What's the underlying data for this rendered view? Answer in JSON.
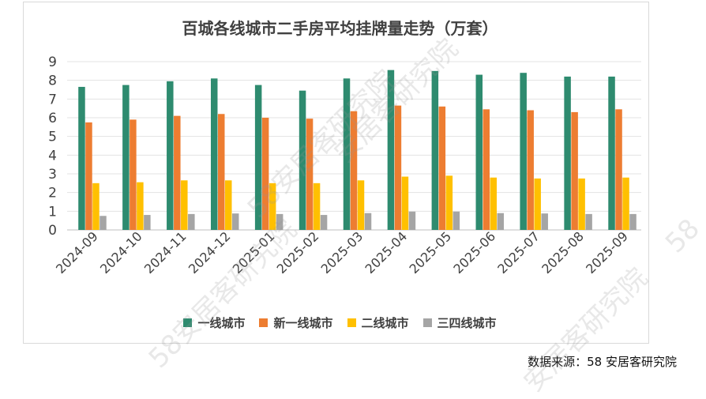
{
  "chart_data": {
    "type": "bar",
    "title": "百城各线城市二手房平均挂牌量走势（万套）",
    "categories": [
      "2024-09",
      "2024-10",
      "2024-11",
      "2024-12",
      "2025-01",
      "2025-02",
      "2025-03",
      "2025-04",
      "2025-05",
      "2025-06",
      "2025-07",
      "2025-08",
      "2025-09"
    ],
    "series": [
      {
        "name": "一线城市",
        "color": "#2e8b6f",
        "values": [
          7.65,
          7.75,
          7.95,
          8.1,
          7.75,
          7.45,
          8.1,
          8.55,
          8.5,
          8.3,
          8.4,
          8.2,
          8.2
        ]
      },
      {
        "name": "新一线城市",
        "color": "#ed7d31",
        "values": [
          5.75,
          5.9,
          6.1,
          6.2,
          6.0,
          5.95,
          6.35,
          6.65,
          6.6,
          6.45,
          6.4,
          6.3,
          6.45
        ]
      },
      {
        "name": "二线城市",
        "color": "#ffc000",
        "values": [
          2.5,
          2.55,
          2.65,
          2.65,
          2.5,
          2.5,
          2.65,
          2.85,
          2.9,
          2.8,
          2.75,
          2.75,
          2.8
        ]
      },
      {
        "name": "三四线城市",
        "color": "#a5a5a5",
        "values": [
          0.75,
          0.8,
          0.85,
          0.88,
          0.85,
          0.8,
          0.9,
          0.98,
          0.98,
          0.9,
          0.88,
          0.85,
          0.85
        ]
      }
    ],
    "yticks": [
      0,
      1,
      2,
      3,
      4,
      5,
      6,
      7,
      8,
      9
    ],
    "ylim": [
      0,
      9
    ],
    "xlabel": "",
    "ylabel": "",
    "grid": true,
    "legend": "bottom"
  },
  "source_text": "数据来源：58 安居客研究院",
  "watermarks": [
    "58安居客研究院",
    "58安居客研究院",
    "安居客研究院",
    "安居客研究院",
    "58"
  ]
}
